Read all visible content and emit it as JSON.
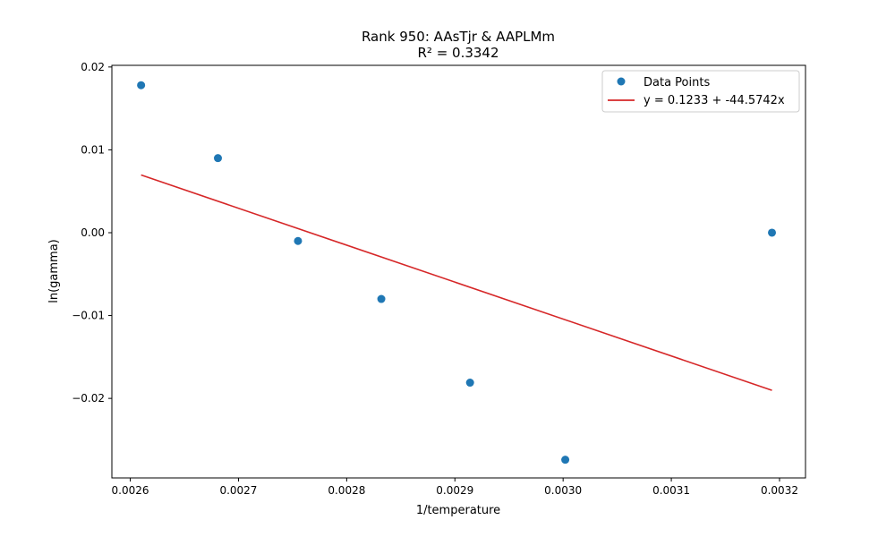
{
  "chart_data": {
    "type": "scatter",
    "title": "Rank 950: AAsTjr & AAPLMm",
    "subtitle": "R² = 0.3342",
    "xlabel": "1/temperature",
    "ylabel": "ln(gamma)",
    "xlim": [
      0.002583,
      0.003224
    ],
    "ylim": [
      -0.0296,
      0.0202
    ],
    "xticks": [
      0.0026,
      0.0027,
      0.0028,
      0.0029,
      0.003,
      0.0031,
      0.0032
    ],
    "xtick_labels": [
      "0.0026",
      "0.0027",
      "0.0028",
      "0.0029",
      "0.0030",
      "0.0031",
      "0.0032"
    ],
    "yticks": [
      0.02,
      0.01,
      0.0,
      -0.01,
      -0.02
    ],
    "ytick_labels": [
      "0.02",
      "0.01",
      "0.00",
      "−0.01",
      "−0.02"
    ],
    "grid": false,
    "legend_position": "top-right",
    "series": [
      {
        "name": "Data Points",
        "type": "scatter",
        "color": "#1f77b4",
        "x": [
          0.00261,
          0.002681,
          0.002755,
          0.002832,
          0.002914,
          0.003002,
          0.003193
        ],
        "y": [
          0.0178,
          0.009,
          -0.001,
          -0.008,
          -0.0181,
          -0.0274,
          0.0
        ]
      },
      {
        "name": "y = 0.1233 + -44.5742x",
        "type": "line",
        "color": "#d62728",
        "intercept": 0.1233,
        "slope": -44.5742,
        "x_range": [
          0.00261,
          0.003193
        ]
      }
    ]
  }
}
